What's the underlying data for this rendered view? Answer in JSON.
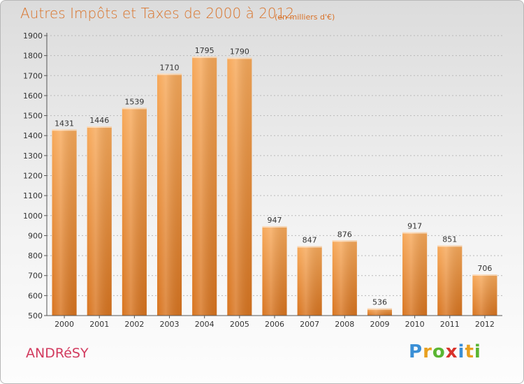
{
  "header": {
    "title": "Autres Impôts et Taxes de 2000 à 2012",
    "unit": "(en milliers d'€)"
  },
  "footer": {
    "city": "ANDRéSY",
    "logo_letters": [
      "P",
      "r",
      "o",
      "x",
      "i",
      "t",
      "i"
    ],
    "logo_colors": [
      "#3a8fd6",
      "#e8a020",
      "#5ab532",
      "#d9322b",
      "#3a8fd6",
      "#e8a020",
      "#5ab532"
    ]
  },
  "colors": {
    "bar_top": "#f7a95a",
    "bar_bottom": "#d8741f",
    "axis": "#555555",
    "grid": "#b9b9b9",
    "text": "#333333"
  },
  "chart_data": {
    "type": "bar",
    "title": "Autres Impôts et Taxes de 2000 à 2012",
    "subtitle": "(en milliers d'€)",
    "xlabel": "",
    "ylabel": "",
    "categories": [
      "2000",
      "2001",
      "2002",
      "2003",
      "2004",
      "2005",
      "2006",
      "2007",
      "2008",
      "2009",
      "2010",
      "2011",
      "2012"
    ],
    "values": [
      1431,
      1446,
      1539,
      1710,
      1795,
      1790,
      947,
      847,
      876,
      536,
      917,
      851,
      706
    ],
    "ylim": [
      500,
      1900
    ],
    "yticks": [
      500,
      600,
      700,
      800,
      900,
      1000,
      1100,
      1200,
      1300,
      1400,
      1500,
      1600,
      1700,
      1800,
      1900
    ],
    "grid": true,
    "legend": "none"
  }
}
